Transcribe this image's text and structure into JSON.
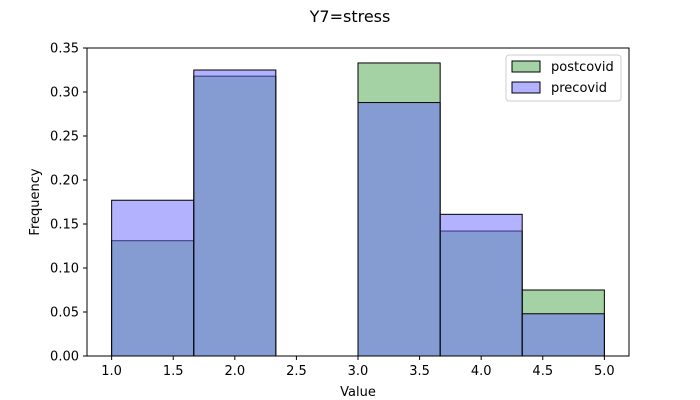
{
  "chart_data": {
    "type": "bar",
    "title": "Y7=stress",
    "xlabel": "Value",
    "ylabel": "Frequency",
    "xlim": [
      0.8,
      5.2
    ],
    "ylim": [
      0,
      0.35
    ],
    "xticks": [
      "1.0",
      "1.5",
      "2.0",
      "2.5",
      "3.0",
      "3.5",
      "4.0",
      "4.5",
      "5.0"
    ],
    "yticks": [
      "0.00",
      "0.05",
      "0.10",
      "0.15",
      "0.20",
      "0.25",
      "0.30",
      "0.35"
    ],
    "bin_edges": [
      1.0,
      1.667,
      2.333,
      3.0,
      3.667,
      4.333,
      5.0
    ],
    "series": [
      {
        "name": "postcovid",
        "color": "#4ca64c",
        "values": [
          0.131,
          0.318,
          0.0,
          0.333,
          0.142,
          0.075
        ]
      },
      {
        "name": "precovid",
        "color": "#6666ff",
        "values": [
          0.177,
          0.325,
          0.0,
          0.288,
          0.161,
          0.048
        ]
      }
    ],
    "legend_position": "top-right",
    "grid": false
  }
}
